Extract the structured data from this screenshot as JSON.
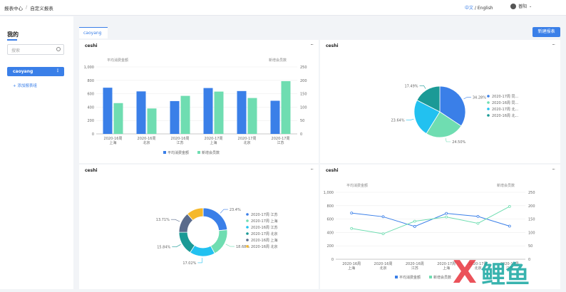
{
  "header": {
    "breadcrumb_1": "报表中心",
    "breadcrumb_sep": "/",
    "breadcrumb_2": "自定义报表",
    "lang_cn": "中文",
    "lang_sep": " / ",
    "lang_en": "English",
    "user": "普阳"
  },
  "sidebar": {
    "title": "我的",
    "search_placeholder": "搜索",
    "items": [
      {
        "label": "caoyang",
        "more": "⋮"
      }
    ],
    "add_label": "+ 添加报表组"
  },
  "tabs": [
    {
      "label": "caoyang"
    }
  ],
  "toolbar": {
    "new_label": "新建报表"
  },
  "cards": [
    {
      "title": "ceshi",
      "more": "···"
    },
    {
      "title": "ceshi",
      "more": "···"
    },
    {
      "title": "ceshi",
      "more": "···"
    },
    {
      "title": "ceshi",
      "more": "···"
    }
  ],
  "watermark": "X 鲤鱼",
  "chart_data": [
    {
      "type": "bar",
      "ylabel_left": "平均消费金额",
      "ylabel_right": "新增会员数",
      "categories": [
        [
          "2020-16周",
          "上海"
        ],
        [
          "2020-16周",
          "北京"
        ],
        [
          "2020-16周",
          "江苏"
        ],
        [
          "2020-17周",
          "上海"
        ],
        [
          "2020-17周",
          "北京"
        ],
        [
          "2020-17周",
          "江苏"
        ]
      ],
      "ylim_left": [
        0,
        1000
      ],
      "yticks_left": [
        "0",
        "200",
        "400",
        "600",
        "800",
        "1,000"
      ],
      "ylim_right": [
        0,
        250
      ],
      "yticks_right": [
        "0",
        "50",
        "100",
        "150",
        "200",
        "250"
      ],
      "series": [
        {
          "name": "平均消费金额",
          "axis": "left",
          "color": "#3a7fe8",
          "values": [
            690,
            635,
            490,
            685,
            640,
            495
          ]
        },
        {
          "name": "新增会员数",
          "axis": "right",
          "color": "#6fddb1",
          "values": [
            115,
            95,
            142,
            158,
            134,
            197
          ]
        }
      ],
      "legend": "bottom"
    },
    {
      "type": "pie",
      "labels": [
        "2020-17周 同...",
        "2020-16周 同...",
        "2020-17周 北...",
        "2020-16周 北..."
      ],
      "values": [
        34.28,
        24.5,
        23.64,
        17.49
      ],
      "display": [
        "34.28%",
        "24.50%",
        "23.64%",
        "17.49%"
      ],
      "colors": [
        "#3a7fe8",
        "#6fddb1",
        "#22c1f0",
        "#1b9a96"
      ],
      "legend": "right"
    },
    {
      "type": "pie",
      "donut": true,
      "labels": [
        "2020-17周 江苏",
        "2020-17周 上海",
        "2020-16周 江苏",
        "2020-17周 北京",
        "2020-16周 上海",
        "2020-16周 北京"
      ],
      "values": [
        23.4,
        18.68,
        17.02,
        15.84,
        13.71,
        11.35
      ],
      "display": [
        "23.4%",
        "18.68%",
        "17.02%",
        "15.84%",
        "13.71%",
        ""
      ],
      "colors": [
        "#3a7fe8",
        "#6fddb1",
        "#22c1f0",
        "#1b9a96",
        "#5a6b8c",
        "#f5b82a"
      ],
      "legend": "right"
    },
    {
      "type": "line",
      "ylabel_left": "平均消费金额",
      "ylabel_right": "新增会员数",
      "categories": [
        [
          "2020-16周",
          "上海"
        ],
        [
          "2020-16周",
          "北京"
        ],
        [
          "2020-16周",
          "江苏"
        ],
        [
          "2020-17周",
          "上海"
        ],
        [
          "2020-17周",
          "北京"
        ],
        [
          "2020-17周",
          "江苏"
        ]
      ],
      "ylim_left": [
        0,
        1000
      ],
      "yticks_left": [
        "0",
        "200",
        "400",
        "600",
        "800",
        "1,000"
      ],
      "ylim_right": [
        0,
        250
      ],
      "yticks_right": [
        "0",
        "50",
        "100",
        "150",
        "200",
        "250"
      ],
      "series": [
        {
          "name": "平均消费金额",
          "axis": "left",
          "color": "#3a7fe8",
          "values": [
            690,
            635,
            490,
            685,
            640,
            495
          ]
        },
        {
          "name": "新增会员数",
          "axis": "right",
          "color": "#6fddb1",
          "values": [
            115,
            95,
            142,
            158,
            134,
            197
          ]
        }
      ],
      "legend": "bottom"
    }
  ]
}
